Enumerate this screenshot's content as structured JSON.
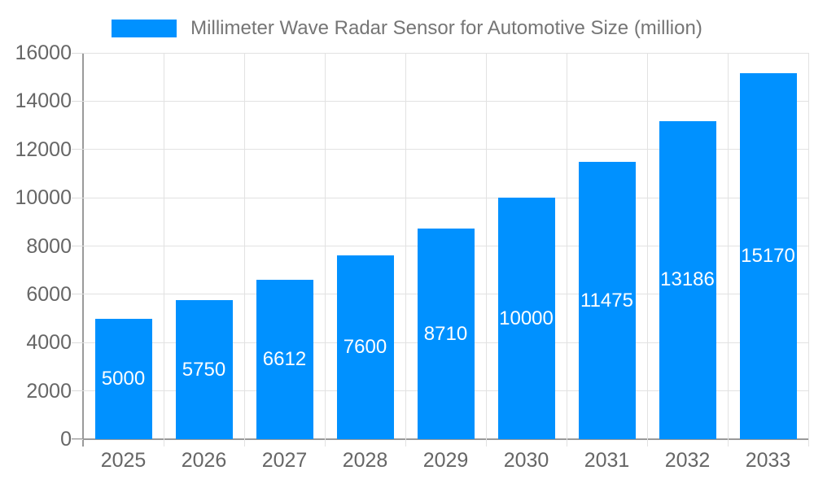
{
  "legend": {
    "label": "Millimeter Wave Radar Sensor for Automotive Size (million)",
    "swatch_color": "#0091FF",
    "position": "top"
  },
  "chart_data": {
    "type": "bar",
    "title": "Millimeter Wave Radar Sensor for Automotive Size (million)",
    "categories": [
      "2025",
      "2026",
      "2027",
      "2028",
      "2029",
      "2030",
      "2031",
      "2032",
      "2033"
    ],
    "values": [
      5000,
      5750,
      6612,
      7600,
      8710,
      10000,
      11475,
      13186,
      15170
    ],
    "series": [
      {
        "name": "Millimeter Wave Radar Sensor for Automotive Size (million)",
        "values": [
          5000,
          5750,
          6612,
          7600,
          8710,
          10000,
          11475,
          13186,
          15170
        ]
      }
    ],
    "xlabel": "",
    "ylabel": "",
    "ylim": [
      0,
      16000
    ],
    "ytick_step": 2000,
    "yticks": [
      0,
      2000,
      4000,
      6000,
      8000,
      10000,
      12000,
      14000,
      16000
    ],
    "grid": true,
    "legend_position": "top",
    "bar_label_position": "inside-center",
    "colors": {
      "bar": "#0091FF",
      "bar_label_text": "#FFFFFF",
      "grid_line": "#E2E2E2",
      "axis_line": "#9A9A9A",
      "axis_text": "#666666",
      "legend_text": "#757575",
      "background": "#FFFFFF"
    }
  }
}
